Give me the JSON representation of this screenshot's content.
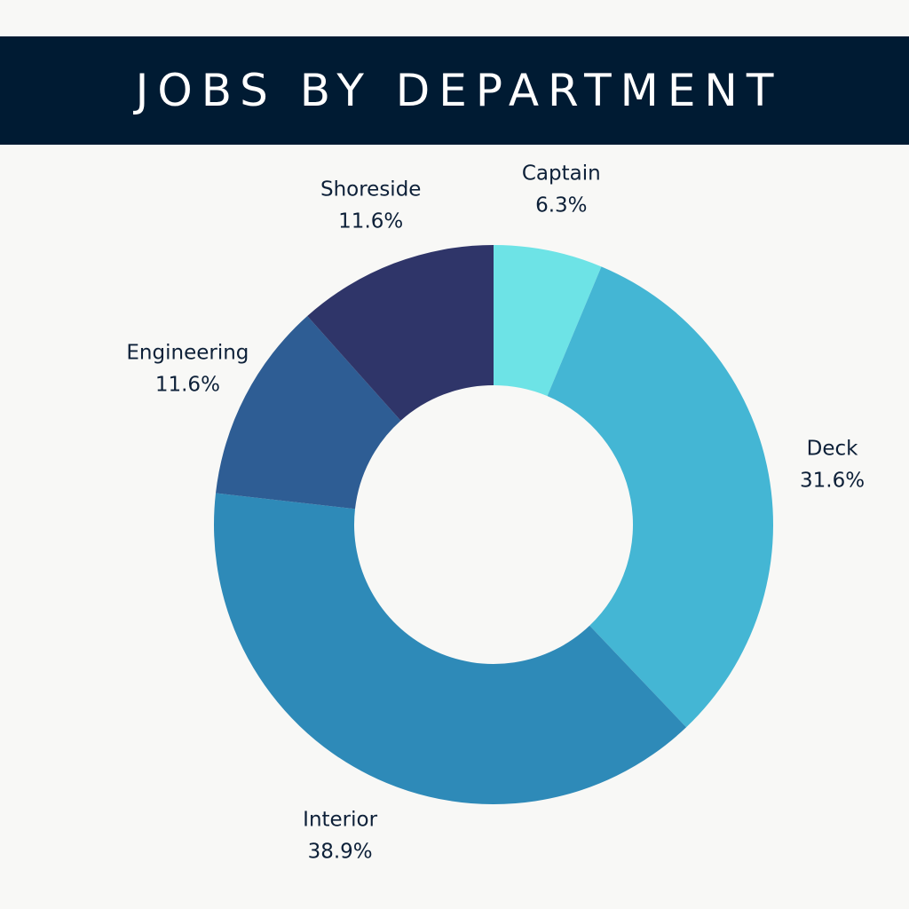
{
  "header": {
    "title": "JOBS BY DEPARTMENT",
    "background": "#001b33"
  },
  "chart_data": {
    "type": "pie",
    "style": "donut",
    "title": "JOBS BY DEPARTMENT",
    "unit": "%",
    "start": "12 o'clock",
    "direction": "clockwise",
    "slices": [
      {
        "label": "Captain",
        "value": 6.3,
        "display": "6.3%",
        "color": "#6de3e6"
      },
      {
        "label": "Deck",
        "value": 31.6,
        "display": "31.6%",
        "color": "#44b6d4"
      },
      {
        "label": "Interior",
        "value": 38.9,
        "display": "38.9%",
        "color": "#2e8ab8"
      },
      {
        "label": "Engineering",
        "value": 11.6,
        "display": "11.6%",
        "color": "#2e5d94"
      },
      {
        "label": "Shoreside",
        "value": 11.6,
        "display": "11.6%",
        "color": "#2f3569"
      }
    ]
  }
}
